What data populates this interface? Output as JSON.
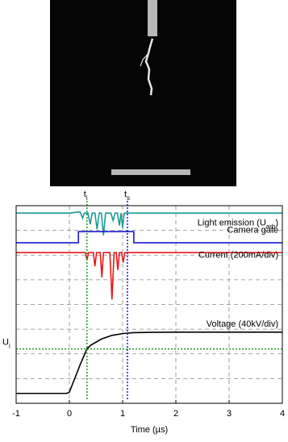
{
  "chart_data": {
    "type": "line",
    "xlabel": "Time (µs)",
    "xlim": [
      -1,
      4
    ],
    "xticks": [
      -1,
      0,
      1,
      2,
      3,
      4
    ],
    "ylim": [
      0,
      8
    ],
    "grid": true,
    "series": [
      {
        "name": "Light emission (U",
        "name_sub": "arb",
        "name_end": ")",
        "color": "#1f9a96",
        "x": [
          -1,
          0,
          0.2,
          0.25,
          0.28,
          0.35,
          0.39,
          0.43,
          0.48,
          0.52,
          0.56,
          0.6,
          0.64,
          0.68,
          0.78,
          0.82,
          0.86,
          0.9,
          0.94,
          0.97,
          1.0,
          1.03,
          1.1,
          2,
          3,
          4
        ],
        "values": [
          7.7,
          7.7,
          7.75,
          7.5,
          7.7,
          7.7,
          7.25,
          7.7,
          7.7,
          7.05,
          7.7,
          7.7,
          6.8,
          7.7,
          7.7,
          7.4,
          7.7,
          7.7,
          7.2,
          7.7,
          7.1,
          7.7,
          7.7,
          7.7,
          7.7,
          7.7
        ]
      },
      {
        "name": "Camera gate",
        "color": "#1a1ad0",
        "x": [
          -1,
          0.17,
          0.17,
          1.21,
          1.21,
          4
        ],
        "values": [
          6.5,
          6.5,
          6.95,
          6.95,
          6.5,
          6.5
        ]
      },
      {
        "name": "Current (200mA/div)",
        "color": "#e81818",
        "x": [
          -1,
          0,
          0.3,
          0.33,
          0.36,
          0.45,
          0.48,
          0.51,
          0.58,
          0.61,
          0.64,
          0.76,
          0.8,
          0.84,
          0.88,
          0.91,
          0.94,
          0.98,
          1.01,
          1.04,
          1.2,
          2,
          3,
          4
        ],
        "values": [
          6.1,
          6.1,
          6.1,
          5.8,
          6.1,
          6.1,
          5.55,
          6.1,
          6.1,
          5.1,
          6.1,
          6.1,
          4.2,
          6.1,
          6.1,
          5.4,
          6.1,
          6.1,
          5.7,
          6.1,
          6.1,
          6.1,
          6.1,
          6.1
        ]
      },
      {
        "name": "Voltage (40kV/div)",
        "color": "#000000",
        "x": [
          -1,
          -0.05,
          0,
          0.1,
          0.2,
          0.33,
          0.4,
          0.6,
          0.8,
          1.0,
          1.2,
          1.5,
          2,
          3,
          4
        ],
        "values": [
          0.4,
          0.4,
          0.45,
          1.0,
          1.55,
          2.2,
          2.35,
          2.6,
          2.75,
          2.82,
          2.86,
          2.87,
          2.88,
          2.88,
          2.88
        ]
      }
    ],
    "markers": [
      {
        "label": "t",
        "label_sub": "i",
        "x": 0.33,
        "color": "#1a9a1a"
      },
      {
        "label": "t",
        "label_sub": "s",
        "x": 1.09,
        "color": "#1a1ad0"
      }
    ],
    "level": {
      "label": "U",
      "label_sub": "i",
      "y": 2.2,
      "color": "#1a9a1a"
    }
  }
}
